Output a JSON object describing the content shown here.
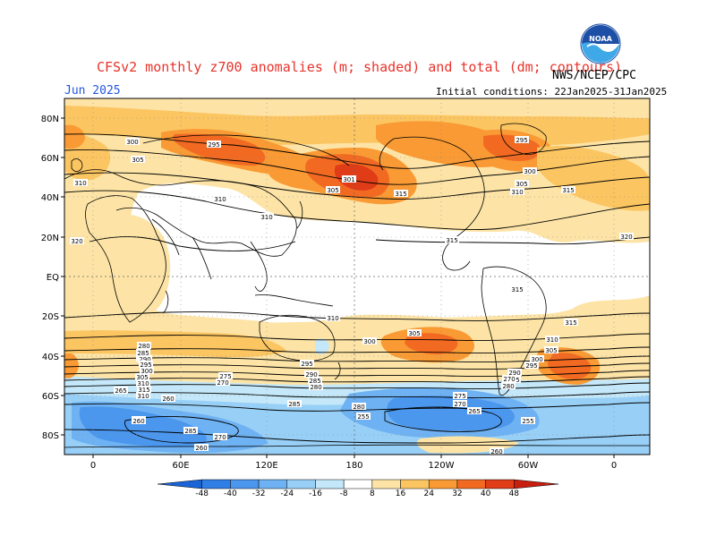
{
  "title": "CFSv2 monthly z700 anomalies (m; shaded) and total (dm; contours)",
  "month": "Jun 2025",
  "source": "NWS/NCEP/CPC",
  "initial_conditions": "Initial conditions: 22Jan2025-31Jan2025",
  "logo_text": "NOAA",
  "lat_labels": [
    "80N",
    "60N",
    "40N",
    "20N",
    "EQ",
    "20S",
    "40S",
    "60S",
    "80S"
  ],
  "lon_labels": [
    "0",
    "60E",
    "120E",
    "180",
    "120W",
    "60W",
    "0"
  ],
  "colorbar": {
    "ticks": [
      "-48",
      "-40",
      "-32",
      "-24",
      "-16",
      "-8",
      "8",
      "16",
      "24",
      "32",
      "40",
      "48"
    ],
    "colors": [
      "#1a64d8",
      "#2f7fe6",
      "#4c97ee",
      "#6eb2f3",
      "#98cff6",
      "#c4e8f9",
      "#ffffff",
      "#fde4a6",
      "#fbc562",
      "#f99a34",
      "#f26a22",
      "#e03c18",
      "#c81e10"
    ]
  },
  "contour_labels": [
    {
      "t": "300"
    },
    {
      "t": "305"
    },
    {
      "t": "310"
    },
    {
      "t": "295"
    },
    {
      "t": "320"
    },
    {
      "t": "310"
    },
    {
      "t": "310"
    },
    {
      "t": "305"
    },
    {
      "t": "301"
    },
    {
      "t": "315"
    },
    {
      "t": "315"
    },
    {
      "t": "320"
    },
    {
      "t": "295"
    },
    {
      "t": "300"
    },
    {
      "t": "305"
    },
    {
      "t": "310"
    },
    {
      "t": "315"
    },
    {
      "t": "315"
    },
    {
      "t": "310"
    },
    {
      "t": "305"
    },
    {
      "t": "300"
    },
    {
      "t": "315"
    },
    {
      "t": "310"
    },
    {
      "t": "305"
    },
    {
      "t": "300"
    },
    {
      "t": "295"
    },
    {
      "t": "290"
    },
    {
      "t": "285"
    },
    {
      "t": "280"
    },
    {
      "t": "275"
    },
    {
      "t": "270"
    },
    {
      "t": "265"
    },
    {
      "t": "260"
    },
    {
      "t": "285"
    },
    {
      "t": "270"
    },
    {
      "t": "285"
    },
    {
      "t": "295"
    },
    {
      "t": "290"
    },
    {
      "t": "285"
    },
    {
      "t": "280"
    },
    {
      "t": "280"
    },
    {
      "t": "285"
    },
    {
      "t": "255"
    },
    {
      "t": "275"
    },
    {
      "t": "270"
    },
    {
      "t": "265"
    },
    {
      "t": "260"
    },
    {
      "t": "255"
    },
    {
      "t": "260"
    },
    {
      "t": "265"
    },
    {
      "t": "280"
    },
    {
      "t": "285"
    },
    {
      "t": "290"
    },
    {
      "t": "295"
    },
    {
      "t": "300"
    },
    {
      "t": "305"
    },
    {
      "t": "310"
    },
    {
      "t": "315"
    },
    {
      "t": "310"
    },
    {
      "t": "260"
    },
    {
      "t": "270"
    }
  ]
}
